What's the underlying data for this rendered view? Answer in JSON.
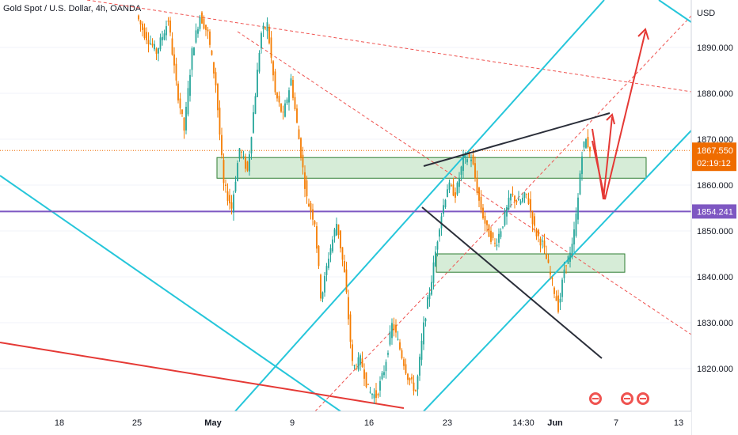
{
  "header": {
    "symbol_title": "Gold Spot / U.S. Dollar, 4h, OANDA"
  },
  "price_axis": {
    "currency": "USD",
    "ticks": [
      "1890.000",
      "1880.000",
      "1870.000",
      "1860.000",
      "1850.000",
      "1840.000",
      "1830.000",
      "1820.000"
    ]
  },
  "time_axis": {
    "ticks": [
      "18",
      "25",
      "May",
      "9",
      "16",
      "23",
      "14:30",
      "Jun",
      "7",
      "13"
    ]
  },
  "price_tags": {
    "last_price": "1867.550",
    "countdown": "02:19:12",
    "level_price": "1854.241"
  },
  "colors": {
    "up": "#26a69a",
    "down": "#f57c00",
    "channel": "#26c6da",
    "support_line": "#e53935",
    "level_line": "#7e57c2",
    "zone_fill": "#c8e6c9",
    "zone_border": "#2e7d32",
    "trend_dark": "#2a2e39",
    "projection": "#e53935"
  },
  "chart_data": {
    "type": "candlestick",
    "symbol": "Gold Spot / U.S. Dollar",
    "interval": "4h",
    "exchange": "OANDA",
    "currency": "USD",
    "y_range": [
      1811,
      1899
    ],
    "last_price": 1867.55,
    "horizontal_level": 1854.241,
    "supply_zone": [
      1861.5,
      1866
    ],
    "demand_zone": [
      1841,
      1845
    ],
    "price_path": [
      [
        175,
        1897
      ],
      [
        185,
        1893
      ],
      [
        200,
        1889
      ],
      [
        215,
        1896
      ],
      [
        225,
        1882
      ],
      [
        235,
        1872
      ],
      [
        245,
        1889
      ],
      [
        255,
        1897
      ],
      [
        265,
        1893
      ],
      [
        275,
        1882
      ],
      [
        285,
        1860
      ],
      [
        295,
        1855
      ],
      [
        305,
        1868
      ],
      [
        315,
        1863
      ],
      [
        325,
        1880
      ],
      [
        332,
        1893
      ],
      [
        340,
        1895
      ],
      [
        350,
        1880
      ],
      [
        360,
        1875
      ],
      [
        370,
        1883
      ],
      [
        380,
        1870
      ],
      [
        390,
        1857
      ],
      [
        400,
        1852
      ],
      [
        408,
        1835
      ],
      [
        418,
        1845
      ],
      [
        428,
        1852
      ],
      [
        438,
        1840
      ],
      [
        448,
        1820
      ],
      [
        458,
        1822
      ],
      [
        468,
        1815
      ],
      [
        478,
        1814
      ],
      [
        488,
        1820
      ],
      [
        498,
        1830
      ],
      [
        508,
        1824
      ],
      [
        518,
        1818
      ],
      [
        528,
        1815
      ],
      [
        538,
        1830
      ],
      [
        548,
        1840
      ],
      [
        558,
        1852
      ],
      [
        568,
        1860
      ],
      [
        578,
        1858
      ],
      [
        588,
        1866
      ],
      [
        598,
        1866
      ],
      [
        608,
        1856
      ],
      [
        618,
        1850
      ],
      [
        628,
        1847
      ],
      [
        638,
        1852
      ],
      [
        648,
        1858
      ],
      [
        658,
        1856
      ],
      [
        668,
        1858
      ],
      [
        678,
        1850
      ],
      [
        688,
        1847
      ],
      [
        698,
        1840
      ],
      [
        708,
        1833
      ],
      [
        716,
        1843
      ],
      [
        724,
        1845
      ],
      [
        732,
        1856
      ],
      [
        737,
        1867
      ],
      [
        742,
        1870
      ],
      [
        747,
        1868
      ]
    ],
    "annotations": [
      {
        "type": "ascending_channel"
      },
      {
        "type": "rising_wedge_resistance"
      },
      {
        "type": "descending_trendline"
      },
      {
        "type": "dashed_trendlines"
      },
      {
        "type": "projected_path",
        "direction": "down_then_up"
      }
    ]
  }
}
